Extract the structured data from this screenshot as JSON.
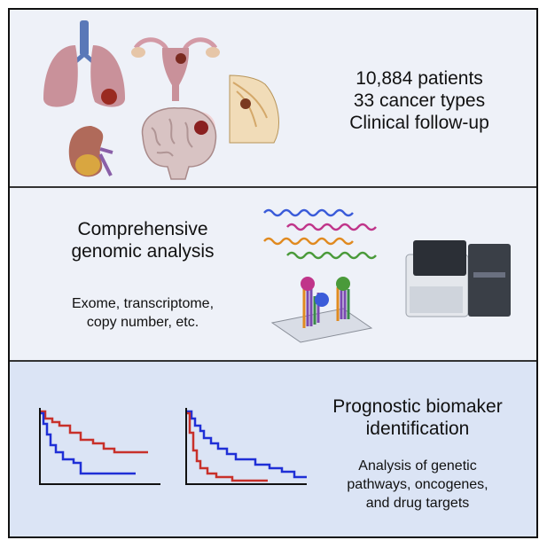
{
  "panel1": {
    "lines": [
      "10,884 patients",
      "33 cancer types",
      "Clinical follow-up"
    ],
    "icons": [
      "lungs-icon",
      "uterus-icon",
      "breast-icon",
      "kidney-icon",
      "brain-icon"
    ]
  },
  "panel2": {
    "title_lines": [
      "Comprehensive",
      "genomic analysis"
    ],
    "sub_lines": [
      "Exome, transcriptome,",
      "copy number, etc."
    ],
    "icons": [
      "dna-strands-icon",
      "microarray-icon",
      "sequencer-icon"
    ]
  },
  "panel3": {
    "title_lines": [
      "Prognostic biomaker",
      "identification"
    ],
    "sub_lines": [
      "Analysis of genetic",
      "pathways, oncogenes,",
      "and drug targets"
    ],
    "icons": [
      "survival-curve-1-icon",
      "survival-curve-2-icon"
    ]
  },
  "colors": {
    "red_curve": "#c8302a",
    "blue_curve": "#1f2fd6",
    "panel_bg": "#eef1f8",
    "panel3_bg": "#dbe4f5"
  }
}
